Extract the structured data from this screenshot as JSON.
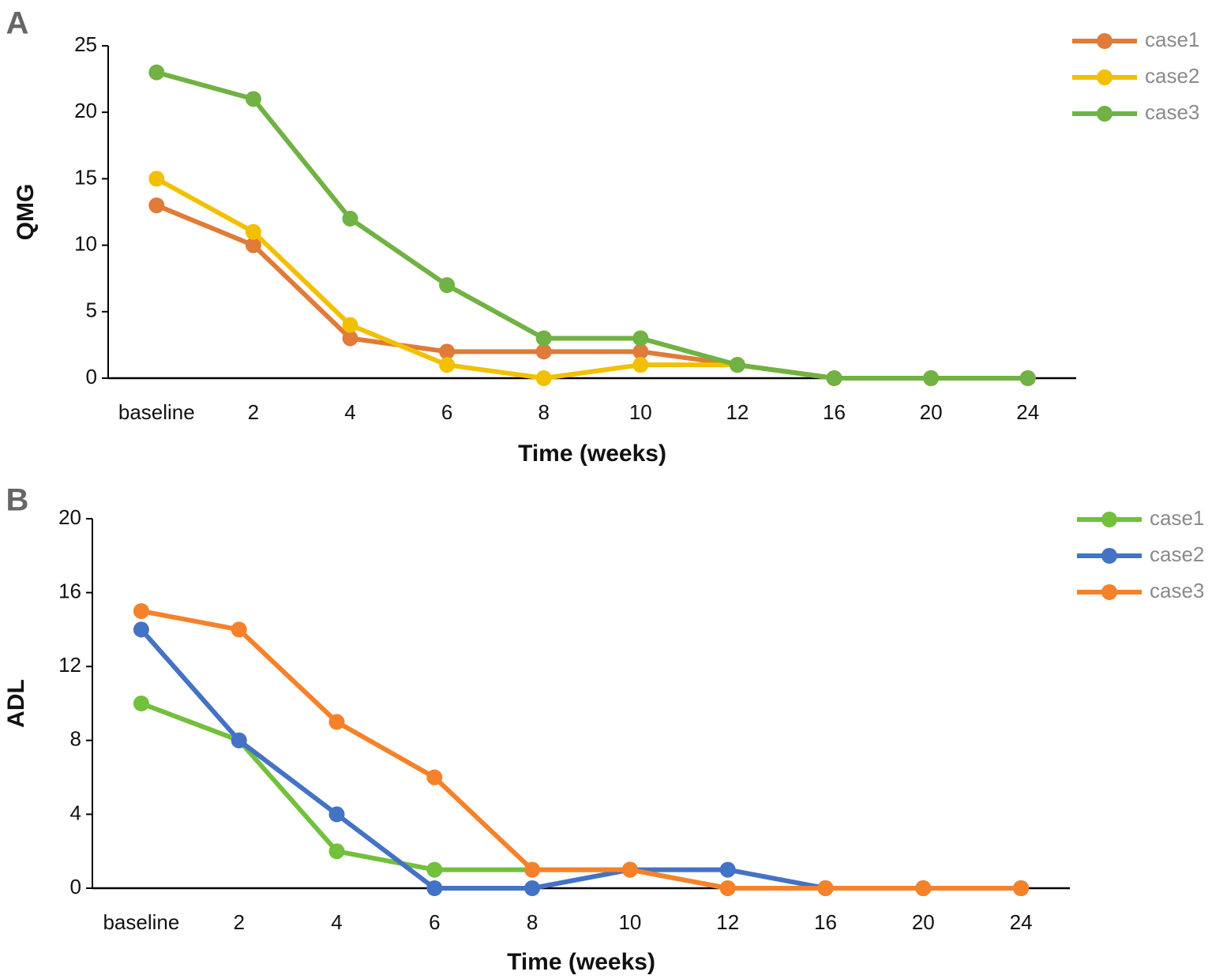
{
  "chart_data": [
    {
      "type": "line",
      "panel": "A",
      "x_label": "Time (weeks)",
      "y_label": "QMG",
      "categories": [
        "baseline",
        "2",
        "4",
        "6",
        "8",
        "10",
        "12",
        "16",
        "20",
        "24"
      ],
      "ylim": [
        0,
        25
      ],
      "yticks": [
        0,
        5,
        10,
        15,
        20,
        25
      ],
      "series": [
        {
          "name": "case1",
          "color": "#e07b39",
          "values": [
            13,
            10,
            3,
            2,
            2,
            2,
            1,
            0,
            0,
            0
          ]
        },
        {
          "name": "case2",
          "color": "#f2c000",
          "values": [
            15,
            11,
            4,
            1,
            0,
            1,
            1,
            0,
            0,
            0
          ]
        },
        {
          "name": "case3",
          "color": "#70b243",
          "values": [
            23,
            21,
            12,
            7,
            3,
            3,
            1,
            0,
            0,
            0
          ]
        }
      ]
    },
    {
      "type": "line",
      "panel": "B",
      "x_label": "Time (weeks)",
      "y_label": "ADL",
      "categories": [
        "baseline",
        "2",
        "4",
        "6",
        "8",
        "10",
        "12",
        "16",
        "20",
        "24"
      ],
      "ylim": [
        0,
        20
      ],
      "yticks": [
        0,
        4,
        8,
        12,
        16,
        20
      ],
      "series": [
        {
          "name": "case1",
          "color": "#72c03c",
          "values": [
            10,
            8,
            2,
            1,
            1,
            1,
            0,
            0,
            0,
            0
          ]
        },
        {
          "name": "case2",
          "color": "#4472c4",
          "values": [
            14,
            8,
            4,
            0,
            0,
            1,
            1,
            0,
            0,
            0
          ]
        },
        {
          "name": "case3",
          "color": "#f5822a",
          "values": [
            15,
            14,
            9,
            6,
            1,
            1,
            0,
            0,
            0,
            0
          ]
        }
      ]
    }
  ]
}
